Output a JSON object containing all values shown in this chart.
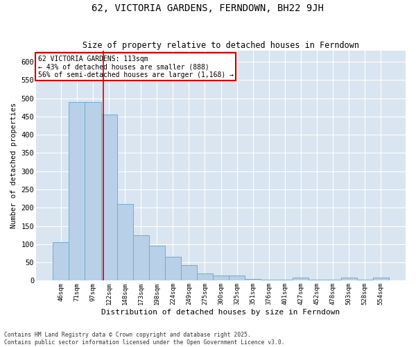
{
  "title": "62, VICTORIA GARDENS, FERNDOWN, BH22 9JH",
  "subtitle": "Size of property relative to detached houses in Ferndown",
  "xlabel": "Distribution of detached houses by size in Ferndown",
  "ylabel": "Number of detached properties",
  "footnote": "Contains HM Land Registry data © Crown copyright and database right 2025.\nContains public sector information licensed under the Open Government Licence v3.0.",
  "bar_color": "#b8d0e8",
  "bar_edge_color": "#6baed6",
  "background_color": "#d9e5f0",
  "grid_color": "#ffffff",
  "vline_color": "#cc0000",
  "annotation_text": "62 VICTORIA GARDENS: 113sqm\n← 43% of detached houses are smaller (888)\n56% of semi-detached houses are larger (1,168) →",
  "annotation_box_color": "#ffffff",
  "annotation_box_edge": "#cc0000",
  "categories": [
    "46sqm",
    "71sqm",
    "97sqm",
    "122sqm",
    "148sqm",
    "173sqm",
    "198sqm",
    "224sqm",
    "249sqm",
    "275sqm",
    "300sqm",
    "325sqm",
    "351sqm",
    "376sqm",
    "401sqm",
    "427sqm",
    "452sqm",
    "478sqm",
    "503sqm",
    "528sqm",
    "554sqm"
  ],
  "values": [
    105,
    490,
    490,
    455,
    210,
    125,
    95,
    65,
    42,
    20,
    15,
    15,
    5,
    2,
    2,
    8,
    2,
    2,
    8,
    2,
    8
  ],
  "ylim": [
    0,
    630
  ],
  "yticks": [
    0,
    50,
    100,
    150,
    200,
    250,
    300,
    350,
    400,
    450,
    500,
    550,
    600
  ],
  "vline_pos": 2.64,
  "figwidth": 6.0,
  "figheight": 5.0,
  "dpi": 100
}
